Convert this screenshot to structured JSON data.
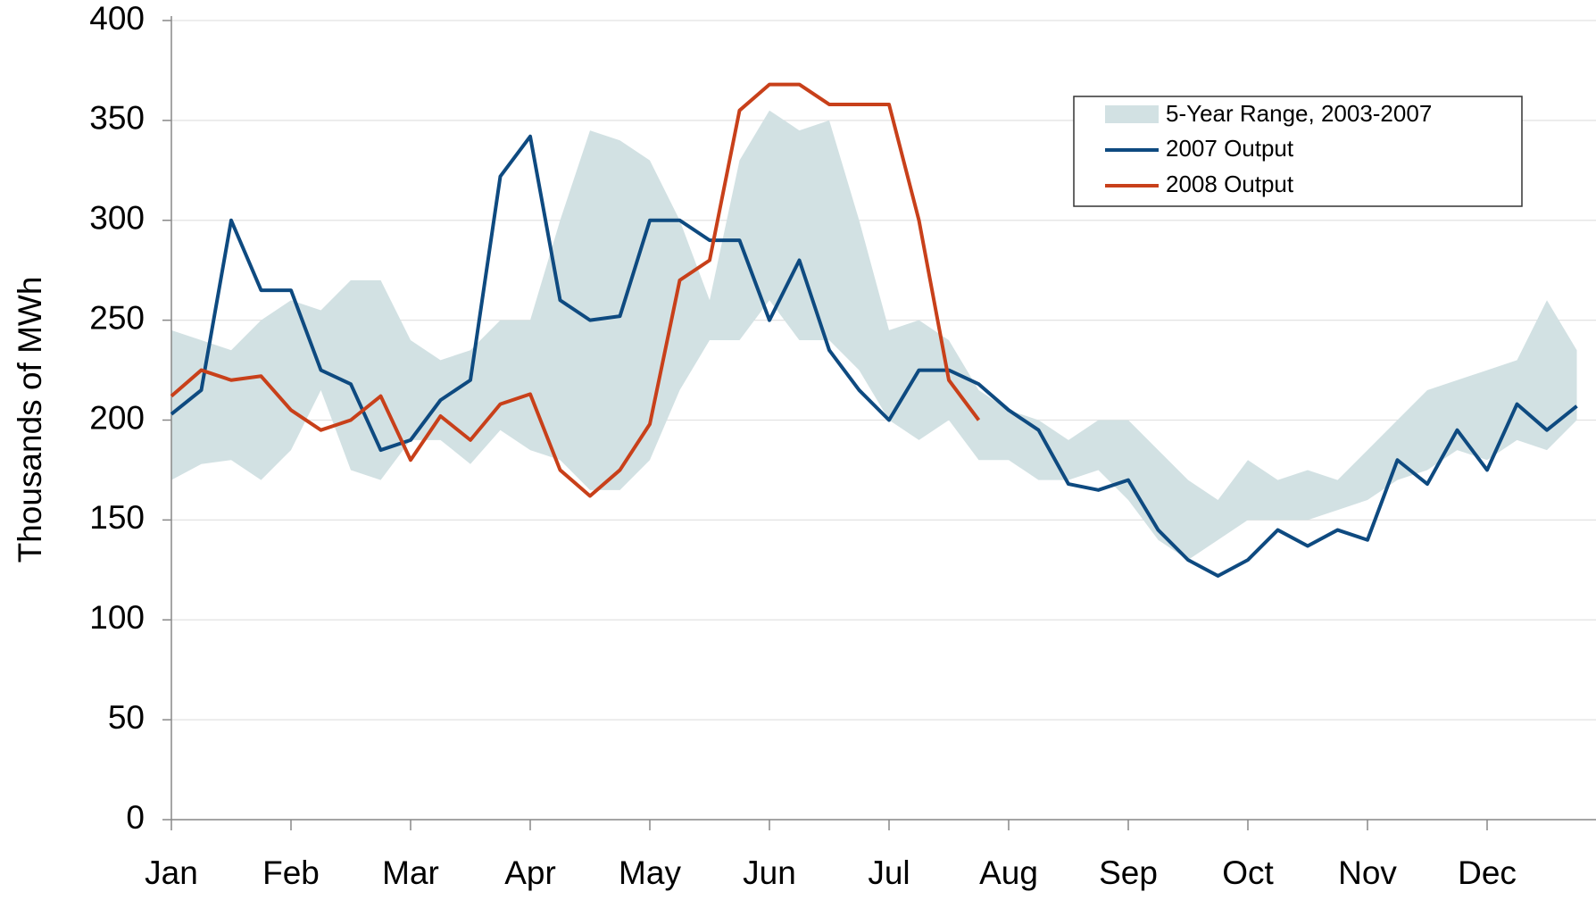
{
  "chart_data": {
    "type": "line",
    "y_label": "Thousands of MWh",
    "categories": [
      "Jan",
      null,
      null,
      null,
      "Feb",
      null,
      null,
      null,
      "Mar",
      null,
      null,
      null,
      "Apr",
      null,
      null,
      null,
      "May",
      null,
      null,
      null,
      "Jun",
      null,
      null,
      null,
      "Jul",
      null,
      null,
      null,
      "Aug",
      null,
      null,
      null,
      "Sep",
      null,
      null,
      null,
      "Oct",
      null,
      null,
      null,
      "Nov",
      null,
      null,
      null,
      "Dec",
      null,
      null,
      null
    ],
    "ylim": [
      0,
      400
    ],
    "yticks": [
      0,
      50,
      100,
      150,
      200,
      250,
      300,
      350,
      400
    ],
    "grid": true,
    "legend": "top-right",
    "band": {
      "name": "5-Year Range, 2003-2007",
      "color": "#d2e1e3",
      "low": [
        170,
        178,
        180,
        170,
        185,
        215,
        175,
        170,
        190,
        190,
        178,
        195,
        185,
        180,
        165,
        165,
        180,
        215,
        240,
        240,
        260,
        240,
        240,
        225,
        200,
        190,
        200,
        180,
        180,
        170,
        170,
        175,
        160,
        140,
        130,
        140,
        150,
        150,
        150,
        155,
        160,
        170,
        175,
        185,
        180,
        190,
        185,
        200
      ],
      "high": [
        245,
        240,
        235,
        250,
        260,
        255,
        270,
        270,
        240,
        230,
        235,
        250,
        250,
        300,
        345,
        340,
        330,
        300,
        260,
        330,
        355,
        345,
        350,
        300,
        245,
        250,
        240,
        215,
        205,
        200,
        190,
        200,
        200,
        185,
        170,
        160,
        180,
        170,
        175,
        170,
        185,
        200,
        215,
        220,
        225,
        230,
        260,
        235
      ]
    },
    "series": [
      {
        "name": "2007 Output",
        "color": "#0e4a80",
        "values": [
          203,
          215,
          300,
          265,
          265,
          225,
          218,
          185,
          190,
          210,
          220,
          322,
          342,
          260,
          250,
          252,
          300,
          300,
          290,
          290,
          250,
          280,
          235,
          215,
          200,
          225,
          225,
          218,
          205,
          195,
          168,
          165,
          170,
          145,
          130,
          122,
          130,
          145,
          137,
          145,
          140,
          180,
          168,
          195,
          175,
          208,
          195,
          207
        ]
      },
      {
        "name": "2008 Output",
        "color": "#c8401a",
        "values": [
          212,
          225,
          220,
          222,
          205,
          195,
          200,
          212,
          180,
          202,
          190,
          208,
          213,
          175,
          162,
          175,
          198,
          270,
          280,
          355,
          368,
          368,
          358,
          358,
          358,
          300,
          220,
          200,
          null,
          null,
          null,
          null,
          null,
          null,
          null,
          null,
          null,
          null,
          null,
          null,
          null,
          null,
          null,
          null,
          null,
          null,
          null,
          null
        ]
      }
    ]
  }
}
